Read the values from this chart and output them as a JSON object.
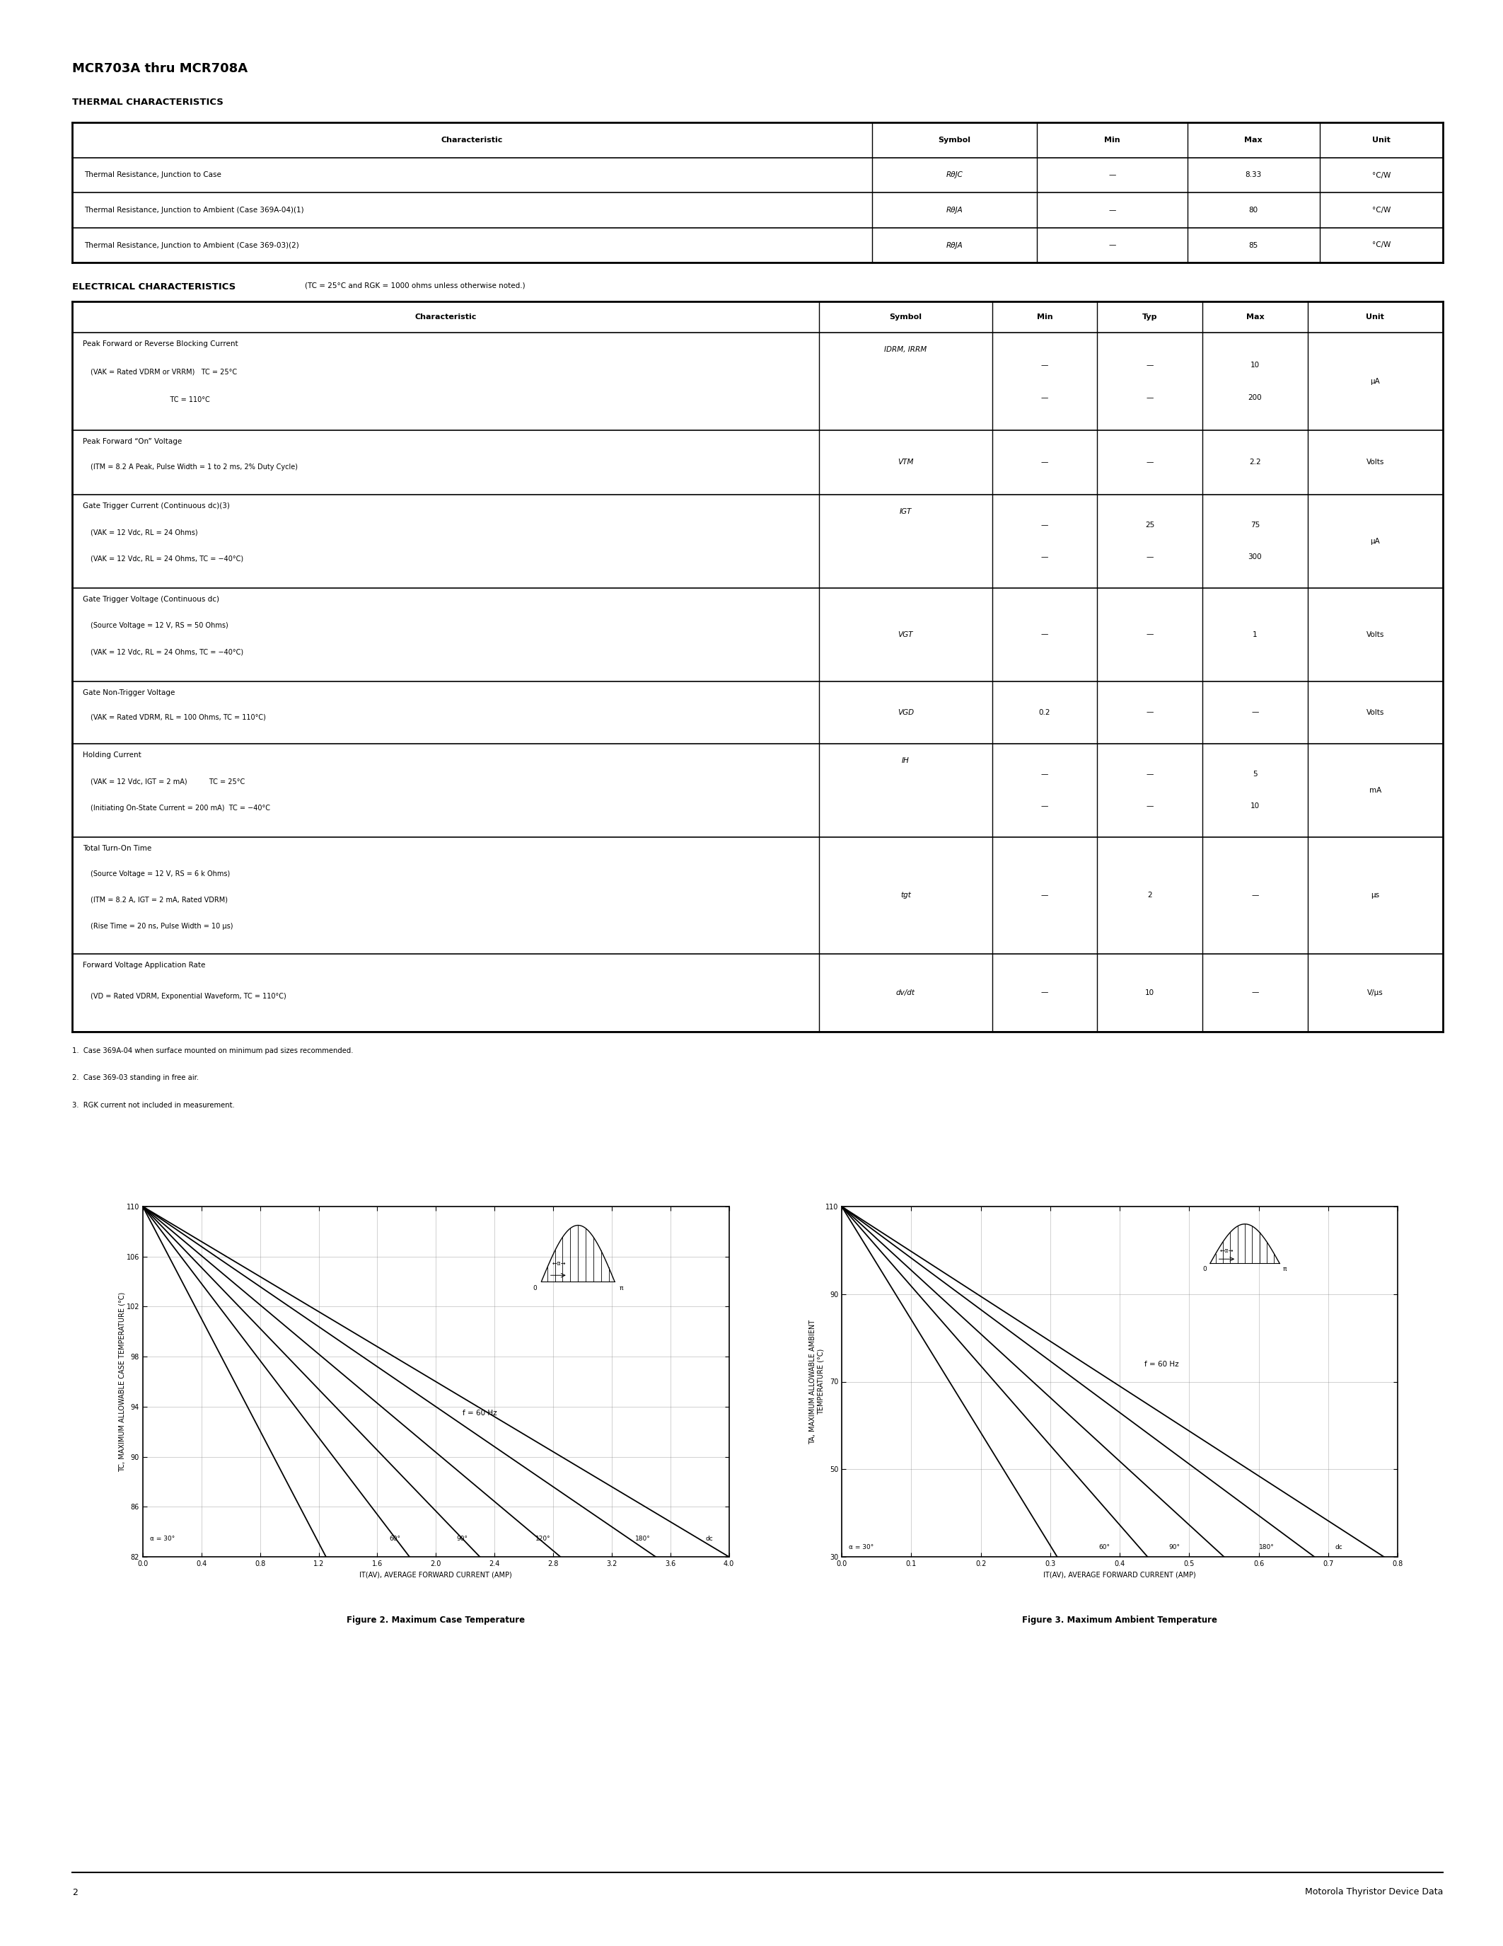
{
  "title": "MCR703A thru MCR708A",
  "page_number": "2",
  "footer_text": "Motorola Thyristor Device Data",
  "thermal_title": "THERMAL CHARACTERISTICS",
  "thermal_headers": [
    "Characteristic",
    "Symbol",
    "Min",
    "Max",
    "Unit"
  ],
  "thermal_rows": [
    [
      "Thermal Resistance, Junction to Case",
      "RθJC",
      "—",
      "8.33",
      "°C/W"
    ],
    [
      "Thermal Resistance, Junction to Ambient (Case 369A-04)(1)",
      "RθJA",
      "—",
      "80",
      "°C/W"
    ],
    [
      "Thermal Resistance, Junction to Ambient (Case 369-03)(2)",
      "RθJA",
      "—",
      "85",
      "°C/W"
    ]
  ],
  "elec_title": "ELECTRICAL CHARACTERISTICS",
  "elec_subtitle": "(TC = 25°C and RGK = 1000 ohms unless otherwise noted.)",
  "elec_headers": [
    "Characteristic",
    "Symbol",
    "Min",
    "Typ",
    "Max",
    "Unit"
  ],
  "elec_rows": [
    {
      "char": [
        "Peak Forward or Reverse Blocking Current",
        "(VAK = Rated VDRM or VRRM)   TC = 25°C",
        "                                    TC = 110°C"
      ],
      "symbol": "IDRM, IRRM",
      "min": [
        "—",
        "—"
      ],
      "typ": [
        "—",
        "—"
      ],
      "max": [
        "10",
        "200"
      ],
      "unit": "μA"
    },
    {
      "char": [
        "Peak Forward “On” Voltage",
        "(ITM = 8.2 A Peak, Pulse Width = 1 to 2 ms, 2% Duty Cycle)"
      ],
      "symbol": "VTM",
      "min": [
        "—"
      ],
      "typ": [
        "—"
      ],
      "max": [
        "2.2"
      ],
      "unit": "Volts"
    },
    {
      "char": [
        "Gate Trigger Current (Continuous dc)(3)",
        "(VAK = 12 Vdc, RL = 24 Ohms)",
        "(VAK = 12 Vdc, RL = 24 Ohms, TC = −40°C)"
      ],
      "symbol": "IGT",
      "min": [
        "—",
        "—"
      ],
      "typ": [
        "25",
        "—"
      ],
      "max": [
        "75",
        "300"
      ],
      "unit": "μA"
    },
    {
      "char": [
        "Gate Trigger Voltage (Continuous dc)",
        "(Source Voltage = 12 V, RS = 50 Ohms)",
        "(VAK = 12 Vdc, RL = 24 Ohms, TC = −40°C)"
      ],
      "symbol": "VGT",
      "min": [
        "—"
      ],
      "typ": [
        "—"
      ],
      "max": [
        "1"
      ],
      "unit": "Volts"
    },
    {
      "char": [
        "Gate Non-Trigger Voltage",
        "(VAK = Rated VDRM, RL = 100 Ohms, TC = 110°C)"
      ],
      "symbol": "VGD",
      "min": [
        "0.2"
      ],
      "typ": [
        "—"
      ],
      "max": [
        "—"
      ],
      "unit": "Volts"
    },
    {
      "char": [
        "Holding Current",
        "(VAK = 12 Vdc, IGT = 2 mA)          TC = 25°C",
        "(Initiating On-State Current = 200 mA)  TC = −40°C"
      ],
      "symbol": "IH",
      "min": [
        "—",
        "—"
      ],
      "typ": [
        "—",
        "—"
      ],
      "max": [
        "5",
        "10"
      ],
      "unit": "mA"
    },
    {
      "char": [
        "Total Turn-On Time",
        "(Source Voltage = 12 V, RS = 6 k Ohms)",
        "(ITM = 8.2 A, IGT = 2 mA, Rated VDRM)",
        "(Rise Time = 20 ns, Pulse Width = 10 μs)"
      ],
      "symbol": "tgt",
      "min": [
        "—"
      ],
      "typ": [
        "2"
      ],
      "max": [
        "—"
      ],
      "unit": "μs"
    },
    {
      "char": [
        "Forward Voltage Application Rate",
        "(VD = Rated VDRM, Exponential Waveform, TC = 110°C)"
      ],
      "symbol": "dv/dt",
      "min": [
        "—"
      ],
      "typ": [
        "10"
      ],
      "max": [
        "—"
      ],
      "unit": "V/μs"
    }
  ],
  "footnotes": [
    "1.  Case 369A-04 when surface mounted on minimum pad sizes recommended.",
    "2.  Case 369-03 standing in free air.",
    "3.  RGK current not included in measurement."
  ],
  "fig2_title": "Figure 2. Maximum Case Temperature",
  "fig3_title": "Figure 3. Maximum Ambient Temperature",
  "fig2_ylabel": "TC, MAXIMUM ALLOWABLE CASE TEMPERATURE (°C)",
  "fig2_xlabel": "IT(AV), AVERAGE FORWARD CURRENT (AMP)",
  "fig3_ylabel": "TA, MAXIMUM ALLOWABLE AMBIENT\nTEMPERATURE (°C)",
  "fig3_xlabel": "IT(AV), AVERAGE FORWARD CURRENT (AMP)",
  "background_color": "#ffffff"
}
